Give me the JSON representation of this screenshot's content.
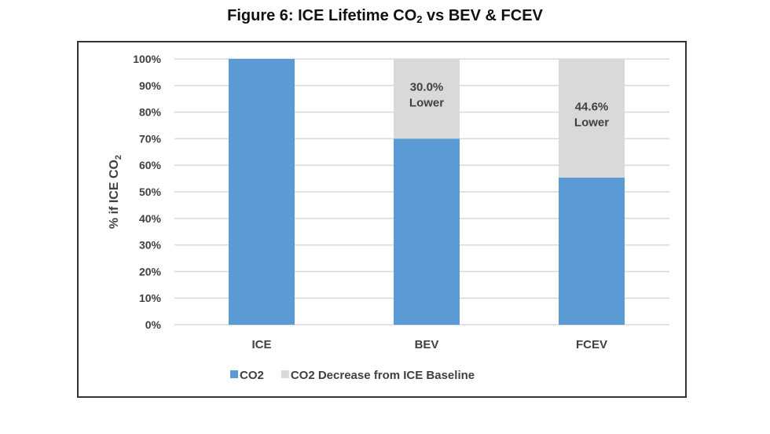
{
  "chart_data": {
    "type": "bar",
    "stacked": true,
    "title_parts": [
      "Figure 6:  ICE Lifetime CO",
      "2",
      " vs BEV & FCEV"
    ],
    "title": "Figure 6:  ICE Lifetime CO2 vs BEV & FCEV",
    "ylabel_parts": [
      "% if ICE CO",
      "2"
    ],
    "ylabel": "% if ICE CO2",
    "xlabel": "",
    "categories": [
      "ICE",
      "BEV",
      "FCEV"
    ],
    "series": [
      {
        "name": "CO2",
        "color": "#5b9bd5",
        "values": [
          100,
          70.0,
          55.4
        ]
      },
      {
        "name": "CO2 Decrease from ICE Baseline",
        "color": "#d9d9d9",
        "values": [
          0,
          30.0,
          44.6
        ]
      }
    ],
    "annotations": [
      {
        "category": "BEV",
        "lines": [
          "30.0%",
          "Lower"
        ]
      },
      {
        "category": "FCEV",
        "lines": [
          "44.6%",
          "Lower"
        ]
      }
    ],
    "yticks": [
      "0%",
      "10%",
      "20%",
      "30%",
      "40%",
      "50%",
      "60%",
      "70%",
      "80%",
      "90%",
      "100%"
    ],
    "ylim": [
      0,
      100
    ],
    "grid": true,
    "gridline_color": "#d9d9d9",
    "legend_position": "bottom"
  }
}
